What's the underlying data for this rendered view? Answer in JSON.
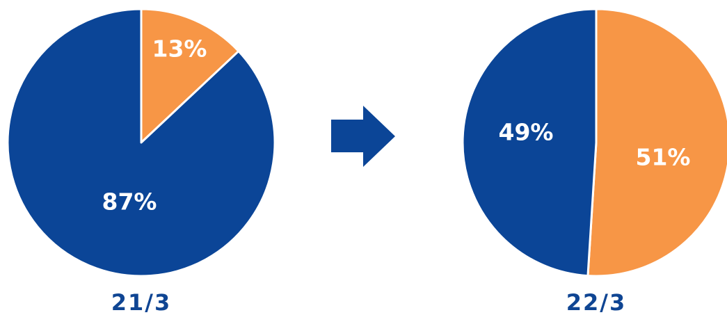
{
  "chart_data": [
    {
      "type": "pie",
      "caption": "21/3",
      "slices": [
        {
          "label": "13%",
          "value": 13,
          "color": "#f79646"
        },
        {
          "label": "87%",
          "value": 87,
          "color": "#0b4597"
        }
      ]
    },
    {
      "type": "pie",
      "caption": "22/3",
      "slices": [
        {
          "label": "51%",
          "value": 51,
          "color": "#f79646"
        },
        {
          "label": "49%",
          "value": 49,
          "color": "#0b4597"
        }
      ]
    }
  ],
  "arrow": {
    "icon": "right-arrow-icon",
    "color": "#0b4597"
  }
}
